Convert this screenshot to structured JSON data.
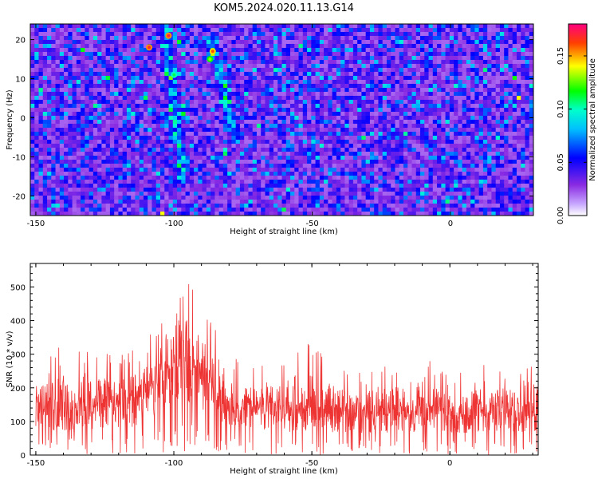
{
  "title": "KOM5.2024.020.11.13.G14",
  "colors": {
    "series": "#ee3333",
    "colormap": [
      "#ffffff",
      "#8a2be2",
      "#0000ff",
      "#00ffff",
      "#00ff00",
      "#ffff00",
      "#ff0000",
      "#ff0080"
    ]
  },
  "chart_data": [
    {
      "type": "heatmap",
      "title": "KOM5.2024.020.11.13.G14",
      "xlabel": "Height of straight line (km)",
      "ylabel": "Frequency (Hz)",
      "xlim": [
        -152,
        30
      ],
      "ylim": [
        -25,
        24
      ],
      "xticks": [
        -150,
        -100,
        -50,
        0
      ],
      "yticks": [
        20,
        10,
        0,
        -10,
        -20
      ],
      "colorbar": {
        "label": "Normalized spectral amplitude",
        "range": [
          0,
          0.18
        ],
        "ticks": [
          "0.00",
          "0.05",
          "0.10",
          "0.15"
        ]
      },
      "ridges": [
        {
          "x_start": -103,
          "x_end": -97,
          "y_start": 22,
          "y_end": -15
        },
        {
          "x_start": -87,
          "x_end": -78,
          "y_start": 20,
          "y_end": -5
        }
      ],
      "peaks": [
        {
          "x": -109,
          "y": 18,
          "amplitude": 0.17
        },
        {
          "x": -102,
          "y": 21,
          "amplitude": 0.17
        },
        {
          "x": -86,
          "y": 17,
          "amplitude": 0.16
        },
        {
          "x": -87,
          "y": 15,
          "amplitude": 0.13
        },
        {
          "x": -100,
          "y": 11,
          "amplitude": 0.11
        }
      ]
    },
    {
      "type": "line",
      "xlabel": "Height of straight line (km)",
      "ylabel": "SNR (10 * v/v)",
      "xlim": [
        -152,
        32
      ],
      "ylim": [
        0,
        570
      ],
      "xticks": [
        -150,
        -100,
        -50,
        0
      ],
      "yticks": [
        0,
        100,
        200,
        300,
        400,
        500
      ],
      "series": [
        {
          "x": [
            -150,
            -140,
            -130,
            -120,
            -115,
            -110,
            -105,
            -100,
            -97,
            -95,
            -92,
            -90,
            -87,
            -85,
            -82,
            -80,
            -75,
            -70,
            -60,
            -50,
            -40,
            -30,
            -20,
            -10,
            0,
            10,
            20,
            30
          ],
          "baseline": [
            120,
            122,
            125,
            130,
            140,
            160,
            200,
            245,
            260,
            255,
            235,
            210,
            185,
            160,
            135,
            125,
            120,
            118,
            115,
            112,
            110,
            110,
            108,
            108,
            108,
            110,
            112,
            115
          ],
          "peak": [
            300,
            330,
            340,
            300,
            330,
            360,
            420,
            570,
            540,
            530,
            510,
            470,
            420,
            420,
            340,
            300,
            280,
            270,
            280,
            340,
            270,
            260,
            280,
            310,
            240,
            270,
            270,
            290
          ]
        }
      ]
    }
  ]
}
